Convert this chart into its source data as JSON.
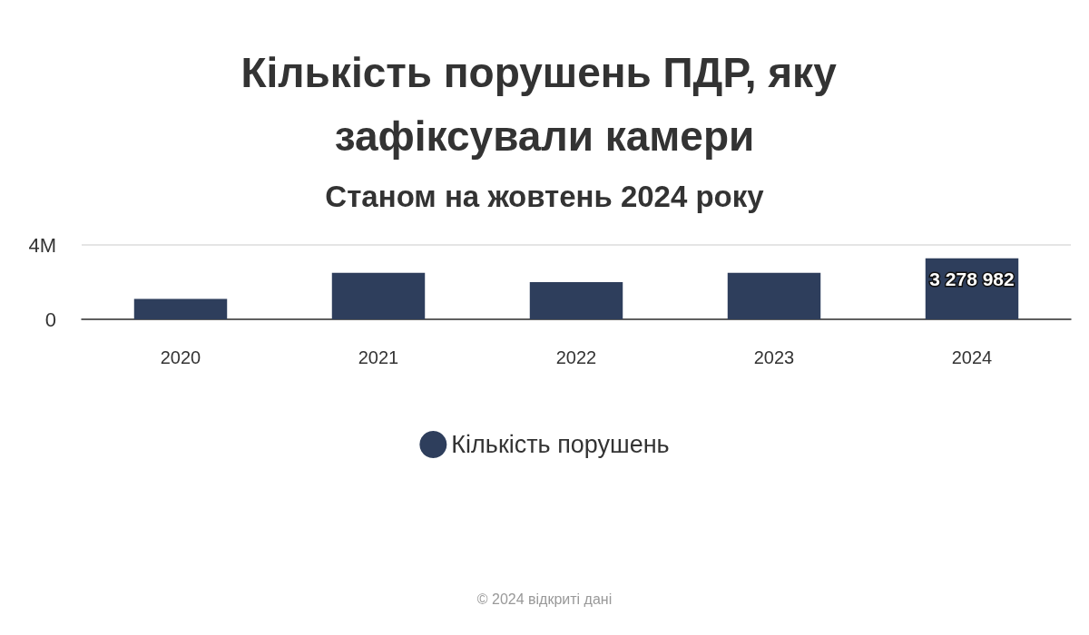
{
  "chart_data": {
    "type": "bar",
    "title": "Кількість порушень ПДР, яку зафіксували камери",
    "subtitle": "Станом на жовтень 2024 року",
    "categories": [
      "2020",
      "2021",
      "2022",
      "2023",
      "2024"
    ],
    "series": [
      {
        "name": "Кількість порушень",
        "color": "#2e3e5c",
        "values": [
          1100000,
          2500000,
          2000000,
          2500000,
          3278982
        ],
        "value_labels": [
          null,
          null,
          null,
          null,
          "3 278 982"
        ]
      }
    ],
    "ylim": [
      0,
      4000000
    ],
    "yticks": [
      0,
      {
        "value": 4000000,
        "label": "4M"
      }
    ],
    "grid": "y",
    "legend": "bottom",
    "marker": "circle",
    "annotations": [
      "© 2024 відкриті дані"
    ]
  }
}
